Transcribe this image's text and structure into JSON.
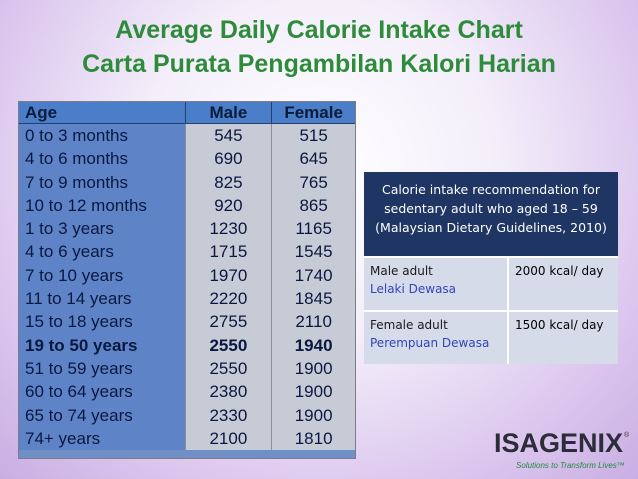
{
  "titles": {
    "english": "Average Daily Calorie Intake Chart",
    "malay": "Carta Purata Pengambilan Kalori Harian"
  },
  "calorie_table": {
    "headers": [
      "Age",
      "Male",
      "Female"
    ],
    "rows": [
      {
        "age": "0 to 3 months",
        "male": "545",
        "female": "515",
        "bold": false
      },
      {
        "age": "4 to 6 months",
        "male": "690",
        "female": "645",
        "bold": false
      },
      {
        "age": "7 to 9 months",
        "male": "825",
        "female": "765",
        "bold": false
      },
      {
        "age": "10 to 12 months",
        "male": "920",
        "female": "865",
        "bold": false
      },
      {
        "age": "1 to 3 years",
        "male": "1230",
        "female": "1165",
        "bold": false
      },
      {
        "age": "4 to 6 years",
        "male": "1715",
        "female": "1545",
        "bold": false
      },
      {
        "age": "7 to 10 years",
        "male": "1970",
        "female": "1740",
        "bold": false
      },
      {
        "age": "11 to 14 years",
        "male": "2220",
        "female": "1845",
        "bold": false
      },
      {
        "age": "15 to 18 years",
        "male": "2755",
        "female": "2110",
        "bold": false
      },
      {
        "age": "19 to 50 years",
        "male": "2550",
        "female": "1940",
        "bold": true
      },
      {
        "age": "51 to 59 years",
        "male": "2550",
        "female": "1900",
        "bold": false
      },
      {
        "age": "60 to 64 years",
        "male": "2380",
        "female": "1900",
        "bold": false
      },
      {
        "age": "65 to 74 years",
        "male": "2330",
        "female": "1900",
        "bold": false
      },
      {
        "age": "74+ years",
        "male": "2100",
        "female": "1810",
        "bold": false
      }
    ]
  },
  "recommendation": {
    "heading": "Calorie intake recommendation for sedentary adult who aged 18 – 59 (Malaysian Dietary Guidelines, 2010)",
    "rows": [
      {
        "label_en": "Male adult",
        "label_my": "Lelaki Dewasa",
        "value": "2000 kcal/ day"
      },
      {
        "label_en": "Female adult",
        "label_my": "Perempuan Dewasa",
        "value": "1500 kcal/ day"
      }
    ]
  },
  "logo": {
    "name": "ISAGENIX",
    "trademark": "®",
    "tagline": "Solutions to Transform Lives™"
  },
  "colors": {
    "title_green": "#2e8b3a",
    "table_blue": "#5e84c7",
    "rec_header_navy": "#1f3564",
    "malay_label_blue": "#3046b8"
  }
}
